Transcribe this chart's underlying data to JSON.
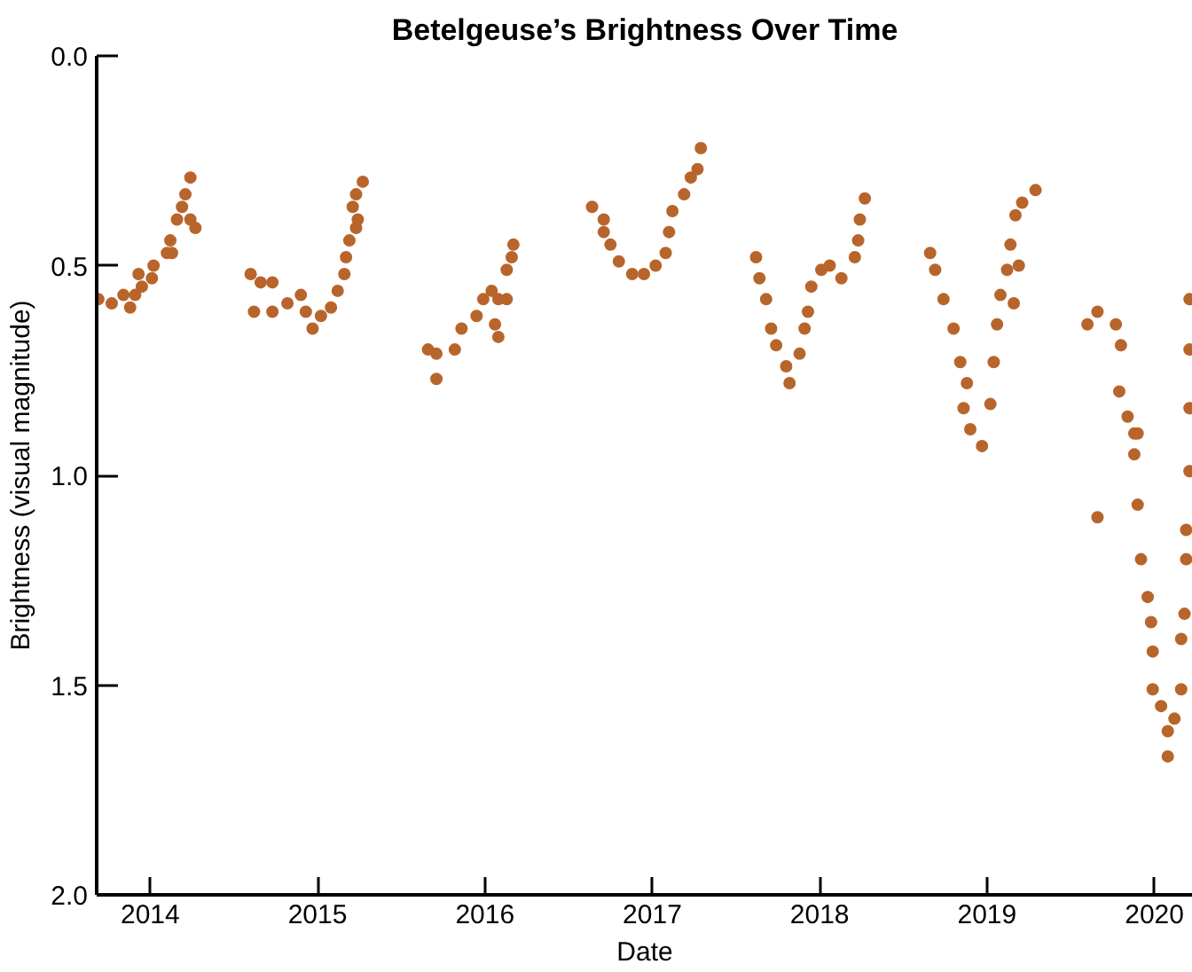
{
  "chart_data": {
    "type": "scatter",
    "title": "Betelgeuse’s Brightness Over Time",
    "xlabel": "Date",
    "ylabel": "Brightness (visual magnitude)",
    "xlim": [
      2013.68,
      2020.23
    ],
    "ylim": [
      2.0,
      0.0
    ],
    "xticks": [
      2014,
      2015,
      2016,
      2017,
      2018,
      2019,
      2020
    ],
    "yticks": [
      {
        "value": 0.0,
        "label": "0.0"
      },
      {
        "value": 0.5,
        "label": "0.5"
      },
      {
        "value": 1.0,
        "label": "1.0"
      },
      {
        "value": 1.5,
        "label": "1.5"
      },
      {
        "value": 2.0,
        "label": "2.0"
      }
    ],
    "grid": false,
    "marker": "circle",
    "series": [
      {
        "color": "#b8652c",
        "x": [
          2013.69,
          2013.77,
          2013.84,
          2013.88,
          2013.91,
          2013.93,
          2013.95,
          2014.01,
          2014.02,
          2014.1,
          2014.12,
          2014.13,
          2014.16,
          2014.19,
          2014.21,
          2014.24,
          2014.24,
          2014.27,
          2014.6,
          2014.62,
          2014.66,
          2014.73,
          2014.73,
          2014.82,
          2014.9,
          2014.93,
          2014.97,
          2015.02,
          2015.08,
          2015.12,
          2015.16,
          2015.17,
          2015.19,
          2015.21,
          2015.23,
          2015.23,
          2015.24,
          2015.27,
          2015.66,
          2015.71,
          2015.71,
          2015.82,
          2015.86,
          2015.95,
          2015.99,
          2016.04,
          2016.06,
          2016.08,
          2016.08,
          2016.13,
          2016.13,
          2016.16,
          2016.17,
          2016.64,
          2016.71,
          2016.71,
          2016.75,
          2016.8,
          2016.88,
          2016.95,
          2017.02,
          2017.08,
          2017.1,
          2017.12,
          2017.19,
          2017.23,
          2017.27,
          2017.29,
          2017.62,
          2017.64,
          2017.68,
          2017.71,
          2017.74,
          2017.8,
          2017.82,
          2017.88,
          2017.91,
          2017.93,
          2017.95,
          2018.01,
          2018.06,
          2018.13,
          2018.21,
          2018.23,
          2018.24,
          2018.27,
          2018.66,
          2018.69,
          2018.74,
          2018.8,
          2018.84,
          2018.86,
          2018.88,
          2018.9,
          2018.97,
          2019.02,
          2019.04,
          2019.06,
          2019.08,
          2019.12,
          2019.14,
          2019.16,
          2019.17,
          2019.19,
          2019.21,
          2019.29,
          2019.6,
          2019.66,
          2019.66,
          2019.77,
          2019.79,
          2019.8,
          2019.84,
          2019.88,
          2019.88,
          2019.9,
          2019.9,
          2019.92,
          2019.96,
          2019.98,
          2019.99,
          2019.99,
          2020.04,
          2020.08,
          2020.08,
          2020.12,
          2020.16,
          2020.16,
          2020.18,
          2020.19,
          2020.19,
          2020.21,
          2020.21,
          2020.21,
          2020.21
        ],
        "values": [
          0.58,
          0.59,
          0.57,
          0.6,
          0.57,
          0.52,
          0.55,
          0.53,
          0.5,
          0.47,
          0.44,
          0.47,
          0.39,
          0.36,
          0.33,
          0.39,
          0.29,
          0.41,
          0.52,
          0.61,
          0.54,
          0.54,
          0.61,
          0.59,
          0.57,
          0.61,
          0.65,
          0.62,
          0.6,
          0.56,
          0.52,
          0.48,
          0.44,
          0.36,
          0.41,
          0.33,
          0.39,
          0.3,
          0.7,
          0.71,
          0.77,
          0.7,
          0.65,
          0.62,
          0.58,
          0.56,
          0.64,
          0.58,
          0.67,
          0.58,
          0.51,
          0.48,
          0.45,
          0.36,
          0.39,
          0.42,
          0.45,
          0.49,
          0.52,
          0.52,
          0.5,
          0.47,
          0.42,
          0.37,
          0.33,
          0.29,
          0.27,
          0.22,
          0.48,
          0.53,
          0.58,
          0.65,
          0.69,
          0.74,
          0.78,
          0.71,
          0.65,
          0.61,
          0.55,
          0.51,
          0.5,
          0.53,
          0.48,
          0.44,
          0.39,
          0.34,
          0.47,
          0.51,
          0.58,
          0.65,
          0.73,
          0.84,
          0.78,
          0.89,
          0.93,
          0.83,
          0.73,
          0.64,
          0.57,
          0.51,
          0.45,
          0.59,
          0.38,
          0.5,
          0.35,
          0.32,
          0.64,
          0.61,
          1.1,
          0.64,
          0.8,
          0.69,
          0.86,
          0.95,
          0.9,
          0.9,
          1.07,
          1.2,
          1.29,
          1.35,
          1.42,
          1.51,
          1.55,
          1.61,
          1.67,
          1.58,
          1.51,
          1.39,
          1.33,
          1.2,
          1.13,
          0.99,
          0.84,
          0.7,
          0.58
        ]
      }
    ]
  }
}
